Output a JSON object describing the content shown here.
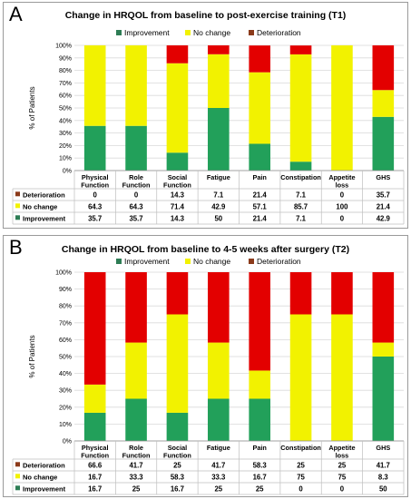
{
  "chart_data": [
    {
      "type": "bar",
      "stacked": true,
      "panel_label": "A",
      "title": "Change in HRQOL from baseline to post-exercise training (T1)",
      "ylabel": "% of Patients",
      "ylim": [
        0,
        100
      ],
      "yticks": [
        "0%",
        "10%",
        "20%",
        "30%",
        "40%",
        "50%",
        "60%",
        "70%",
        "80%",
        "90%",
        "100%"
      ],
      "legend_position": "top",
      "categories": [
        "Physical Function",
        "Role Function",
        "Social Function",
        "Fatigue",
        "Pain",
        "Constipation",
        "Appetite loss",
        "GHS"
      ],
      "series": [
        {
          "name": "Improvement",
          "color": "#22a05a",
          "values": [
            35.7,
            35.7,
            14.3,
            50,
            21.4,
            7.1,
            0,
            42.9
          ],
          "labels": [
            "35.7",
            "35.7",
            "14.3",
            "50",
            "21.4",
            "7.1",
            "0",
            "42.9"
          ]
        },
        {
          "name": "No change",
          "color": "#f2f200",
          "values": [
            64.3,
            64.3,
            71.4,
            42.9,
            57.1,
            85.7,
            100,
            21.4
          ],
          "labels": [
            "64.3",
            "64.3",
            "71.4",
            "42.9",
            "57.1",
            "85.7",
            "100",
            "21.4"
          ]
        },
        {
          "name": "Deterioration",
          "color": "#e30000",
          "values": [
            0,
            0,
            14.3,
            7.1,
            21.4,
            7.1,
            0,
            35.7
          ],
          "labels": [
            "0",
            "0",
            "14.3",
            "7.1",
            "21.4",
            "7.1",
            "0",
            "35.7"
          ]
        }
      ],
      "table_order": [
        "Deterioration",
        "No change",
        "Improvement"
      ],
      "legend_colors": {
        "Improvement": "#2e7d55",
        "No change": "#f2f200",
        "Deterioration": "#8b3a1a"
      }
    },
    {
      "type": "bar",
      "stacked": true,
      "panel_label": "B",
      "title": "Change in HRQOL from baseline to 4-5 weeks after surgery (T2)",
      "ylabel": "% of Patients",
      "ylim": [
        0,
        100
      ],
      "yticks": [
        "0%",
        "10%",
        "20%",
        "30%",
        "40%",
        "50%",
        "60%",
        "70%",
        "80%",
        "90%",
        "100%"
      ],
      "legend_position": "top",
      "categories": [
        "Physical Function",
        "Role Function",
        "Social Function",
        "Fatigue",
        "Pain",
        "Constipation",
        "Appetite loss",
        "GHS"
      ],
      "series": [
        {
          "name": "Improvement",
          "color": "#22a05a",
          "values": [
            16.7,
            25,
            16.7,
            25,
            25,
            0,
            0,
            50
          ],
          "labels": [
            "16.7",
            "25",
            "16.7",
            "25",
            "25",
            "0",
            "0",
            "50"
          ]
        },
        {
          "name": "No change",
          "color": "#f2f200",
          "values": [
            16.7,
            33.3,
            58.3,
            33.3,
            16.7,
            75,
            75,
            8.3
          ],
          "labels": [
            "16.7",
            "33.3",
            "58.3",
            "33.3",
            "16.7",
            "75",
            "75",
            "8.3"
          ]
        },
        {
          "name": "Deterioration",
          "color": "#e30000",
          "values": [
            66.6,
            41.7,
            25,
            41.7,
            58.3,
            25,
            25,
            41.7
          ],
          "labels": [
            "66.6",
            "41.7",
            "25",
            "41.7",
            "58.3",
            "25",
            "25",
            "41.7"
          ]
        }
      ],
      "table_order": [
        "Deterioration",
        "No change",
        "Improvement"
      ],
      "legend_colors": {
        "Improvement": "#2e7d55",
        "No change": "#f2f200",
        "Deterioration": "#8b3a1a"
      }
    }
  ]
}
